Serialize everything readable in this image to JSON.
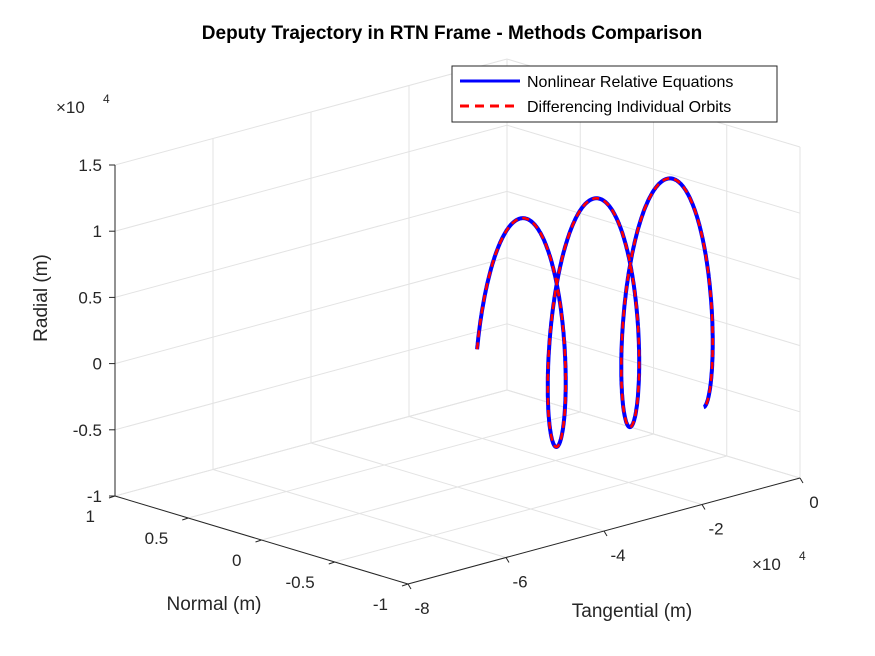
{
  "chart_data": {
    "type": "line",
    "title": "Deputy Trajectory in RTN Frame - Methods Comparison",
    "xlabel": "Tangential (m)",
    "ylabel": "Normal (m)",
    "zlabel": "Radial (m)",
    "x_ticks": [
      "-8",
      "-6",
      "-4",
      "-2",
      "0"
    ],
    "y_ticks": [
      "-1",
      "-0.5",
      "0",
      "0.5",
      "1"
    ],
    "z_ticks": [
      "-1",
      "-0.5",
      "0",
      "0.5",
      "1",
      "1.5"
    ],
    "x_multiplier": "×10",
    "x_exponent": "4",
    "z_multiplier": "×10",
    "z_exponent": "4",
    "xlim": [
      -80000,
      0
    ],
    "ylim": [
      -1,
      1
    ],
    "zlim": [
      -10000,
      15000
    ],
    "grid": true,
    "legend_position": "top-right",
    "series": [
      {
        "name": "Nonlinear Relative Equations",
        "color": "#0000ff",
        "style": "solid",
        "trajectory": {
          "radial_amplitude": 9000,
          "radial_phase_start": "0 at start, rising",
          "tangential_start": -36000,
          "tangential_drift_per_rev": 15000,
          "tangential_oscillation_amplitude": 5000,
          "revolutions": 2.75,
          "normal": 0
        }
      },
      {
        "name": "Differencing Individual Orbits",
        "color": "#ff0000",
        "style": "dashed",
        "trajectory": {
          "radial_amplitude": 9000,
          "radial_phase_start": "0 at start, rising",
          "tangential_start": -36000,
          "tangential_drift_per_rev": 15000,
          "tangential_oscillation_amplitude": 5000,
          "revolutions": 2.75,
          "normal": 0
        }
      }
    ]
  }
}
